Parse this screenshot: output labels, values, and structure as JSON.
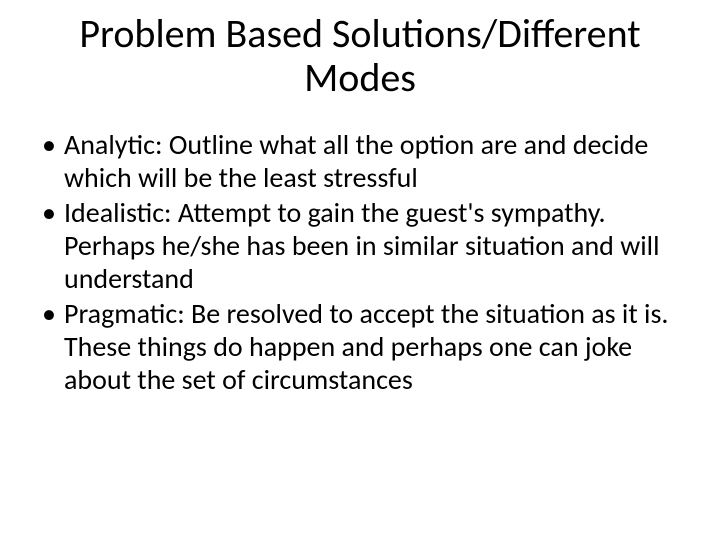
{
  "slide": {
    "title": "Problem Based Solutions/Different Modes",
    "title_fontsize": 40,
    "title_color": "#000000",
    "bullets": [
      "Analytic:  Outline what all the option are and decide which will be the least stressful",
      "Idealistic:  Attempt to gain the guest's sympathy.  Perhaps he/she has been in similar situation and will understand",
      "Pragmatic:  Be resolved to accept the situation as it is.  These things do happen and perhaps one can joke about the set of circumstances"
    ],
    "body_fontsize": 28,
    "body_color": "#000000",
    "background_color": "#ffffff"
  }
}
